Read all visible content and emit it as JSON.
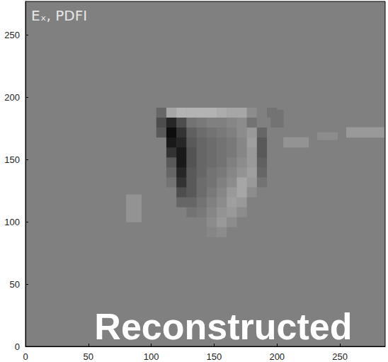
{
  "chart_data": {
    "type": "heatmap",
    "title": "Eₓ, PDFI",
    "annotations": [
      "Reconstructed"
    ],
    "xlim": [
      0,
      286
    ],
    "ylim": [
      0,
      277
    ],
    "xticks": [
      0,
      50,
      100,
      150,
      200,
      250
    ],
    "yticks": [
      0,
      50,
      100,
      150,
      200,
      250
    ],
    "zlim": [
      -1,
      1
    ],
    "x_edges": [
      96,
      104,
      112,
      120,
      128,
      136,
      144,
      152,
      160,
      168,
      176,
      184,
      192,
      200,
      208
    ],
    "y_edges": [
      88,
      96,
      104,
      112,
      120,
      128,
      136,
      144,
      152,
      160,
      168,
      176,
      184,
      192,
      200
    ],
    "cells": [
      [
        0,
        0,
        0,
        0,
        0,
        0,
        0.05,
        0.1,
        0,
        0,
        0,
        0,
        0,
        0
      ],
      [
        0,
        0,
        0,
        0,
        0,
        0,
        0.1,
        0.2,
        0.1,
        0,
        0,
        0,
        0,
        0
      ],
      [
        0,
        0,
        0,
        0,
        -0.1,
        -0.05,
        0.05,
        0.15,
        0.2,
        0.1,
        0,
        0,
        0,
        0
      ],
      [
        0,
        0,
        0,
        -0.2,
        -0.2,
        -0.1,
        0,
        0.1,
        0.25,
        0.2,
        0,
        0,
        0,
        0
      ],
      [
        0,
        0,
        0,
        -0.4,
        -0.3,
        -0.15,
        -0.05,
        0.05,
        0.2,
        0.3,
        0.1,
        0,
        0,
        0
      ],
      [
        0,
        0,
        -0.1,
        -0.6,
        -0.3,
        -0.15,
        -0.1,
        0,
        0.1,
        0.3,
        0.2,
        -0.1,
        0,
        0
      ],
      [
        0,
        0,
        -0.2,
        -0.7,
        -0.3,
        -0.2,
        -0.1,
        -0.05,
        0.05,
        0.15,
        0.25,
        -0.2,
        0,
        0
      ],
      [
        0,
        0,
        -0.3,
        -0.8,
        -0.35,
        -0.2,
        -0.15,
        -0.1,
        0,
        0.1,
        0.2,
        -0.25,
        0,
        0
      ],
      [
        0,
        0,
        -0.6,
        -0.8,
        -0.35,
        -0.2,
        -0.15,
        -0.1,
        -0.05,
        0.05,
        0.2,
        -0.3,
        0,
        0
      ],
      [
        0,
        0,
        -0.8,
        -0.7,
        -0.3,
        -0.2,
        -0.15,
        -0.1,
        -0.05,
        0.05,
        0.25,
        -0.3,
        0,
        0
      ],
      [
        0,
        -0.3,
        -0.9,
        -0.6,
        -0.25,
        -0.15,
        -0.1,
        -0.05,
        0,
        0.1,
        0.2,
        -0.2,
        0,
        0
      ],
      [
        0,
        -0.4,
        -0.7,
        -0.4,
        -0.1,
        -0.05,
        0,
        0,
        0.05,
        0.1,
        -0.1,
        0,
        0,
        0
      ],
      [
        0,
        -0.2,
        0.3,
        0.4,
        0.4,
        0.4,
        0.4,
        0.35,
        0.3,
        0.3,
        0.1,
        0,
        -0.1,
        0
      ],
      [
        0,
        0,
        0,
        0,
        0,
        0,
        0,
        0,
        0,
        0,
        0,
        0,
        0,
        0
      ]
    ],
    "patches": [
      [
        80,
        92,
        100,
        122,
        0.15
      ],
      [
        205,
        225,
        160,
        168,
        0.15
      ],
      [
        232,
        248,
        166,
        172,
        0.1
      ],
      [
        255,
        285,
        168,
        176,
        0.2
      ],
      [
        195,
        205,
        176,
        190,
        -0.1
      ]
    ]
  }
}
